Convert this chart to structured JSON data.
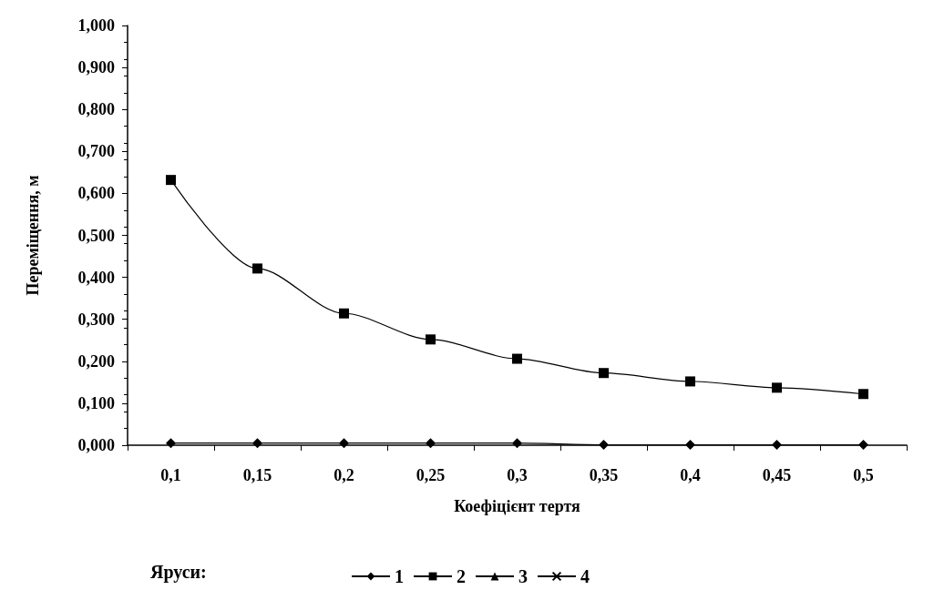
{
  "chart_data": {
    "type": "line",
    "xlabel": "Коефіцієнт тертя",
    "ylabel": "Переміщення, м",
    "legend_title": "Яруси:",
    "categories": [
      "0,1",
      "0,15",
      "0,2",
      "0,25",
      "0,3",
      "0,35",
      "0,4",
      "0,45",
      "0,5"
    ],
    "series": [
      {
        "name": "1",
        "color": "#000000",
        "marker": "diamond",
        "values": [
          0.005,
          0.005,
          0.005,
          0.005,
          0.005,
          0.001,
          0.001,
          0.001,
          0.001
        ]
      },
      {
        "name": "2",
        "color": "#000000",
        "marker": "square",
        "values": [
          0.632,
          0.421,
          0.314,
          0.252,
          0.206,
          0.172,
          0.152,
          0.137,
          0.122
        ]
      },
      {
        "name": "3",
        "color": "#000000",
        "marker": "triangle",
        "values": [
          null,
          null,
          null,
          null,
          null,
          null,
          null,
          null,
          null
        ]
      },
      {
        "name": "4",
        "color": "#000000",
        "marker": "cross",
        "values": [
          null,
          null,
          null,
          null,
          null,
          null,
          null,
          null,
          null
        ]
      }
    ],
    "ylim": [
      0,
      1
    ],
    "yticks": [
      {
        "value": 0,
        "label": "0,000"
      },
      {
        "value": 0.1,
        "label": "0,100"
      },
      {
        "value": 0.2,
        "label": "0,200"
      },
      {
        "value": 0.3,
        "label": "0,300"
      },
      {
        "value": 0.4,
        "label": "0,400"
      },
      {
        "value": 0.5,
        "label": "0,500"
      },
      {
        "value": 0.6,
        "label": "0,600"
      },
      {
        "value": 0.7,
        "label": "0,700"
      },
      {
        "value": 0.8,
        "label": "0,800"
      },
      {
        "value": 0.9,
        "label": "0,900"
      },
      {
        "value": 1,
        "label": "1,000"
      }
    ],
    "grid": false,
    "legend": "bottom"
  }
}
